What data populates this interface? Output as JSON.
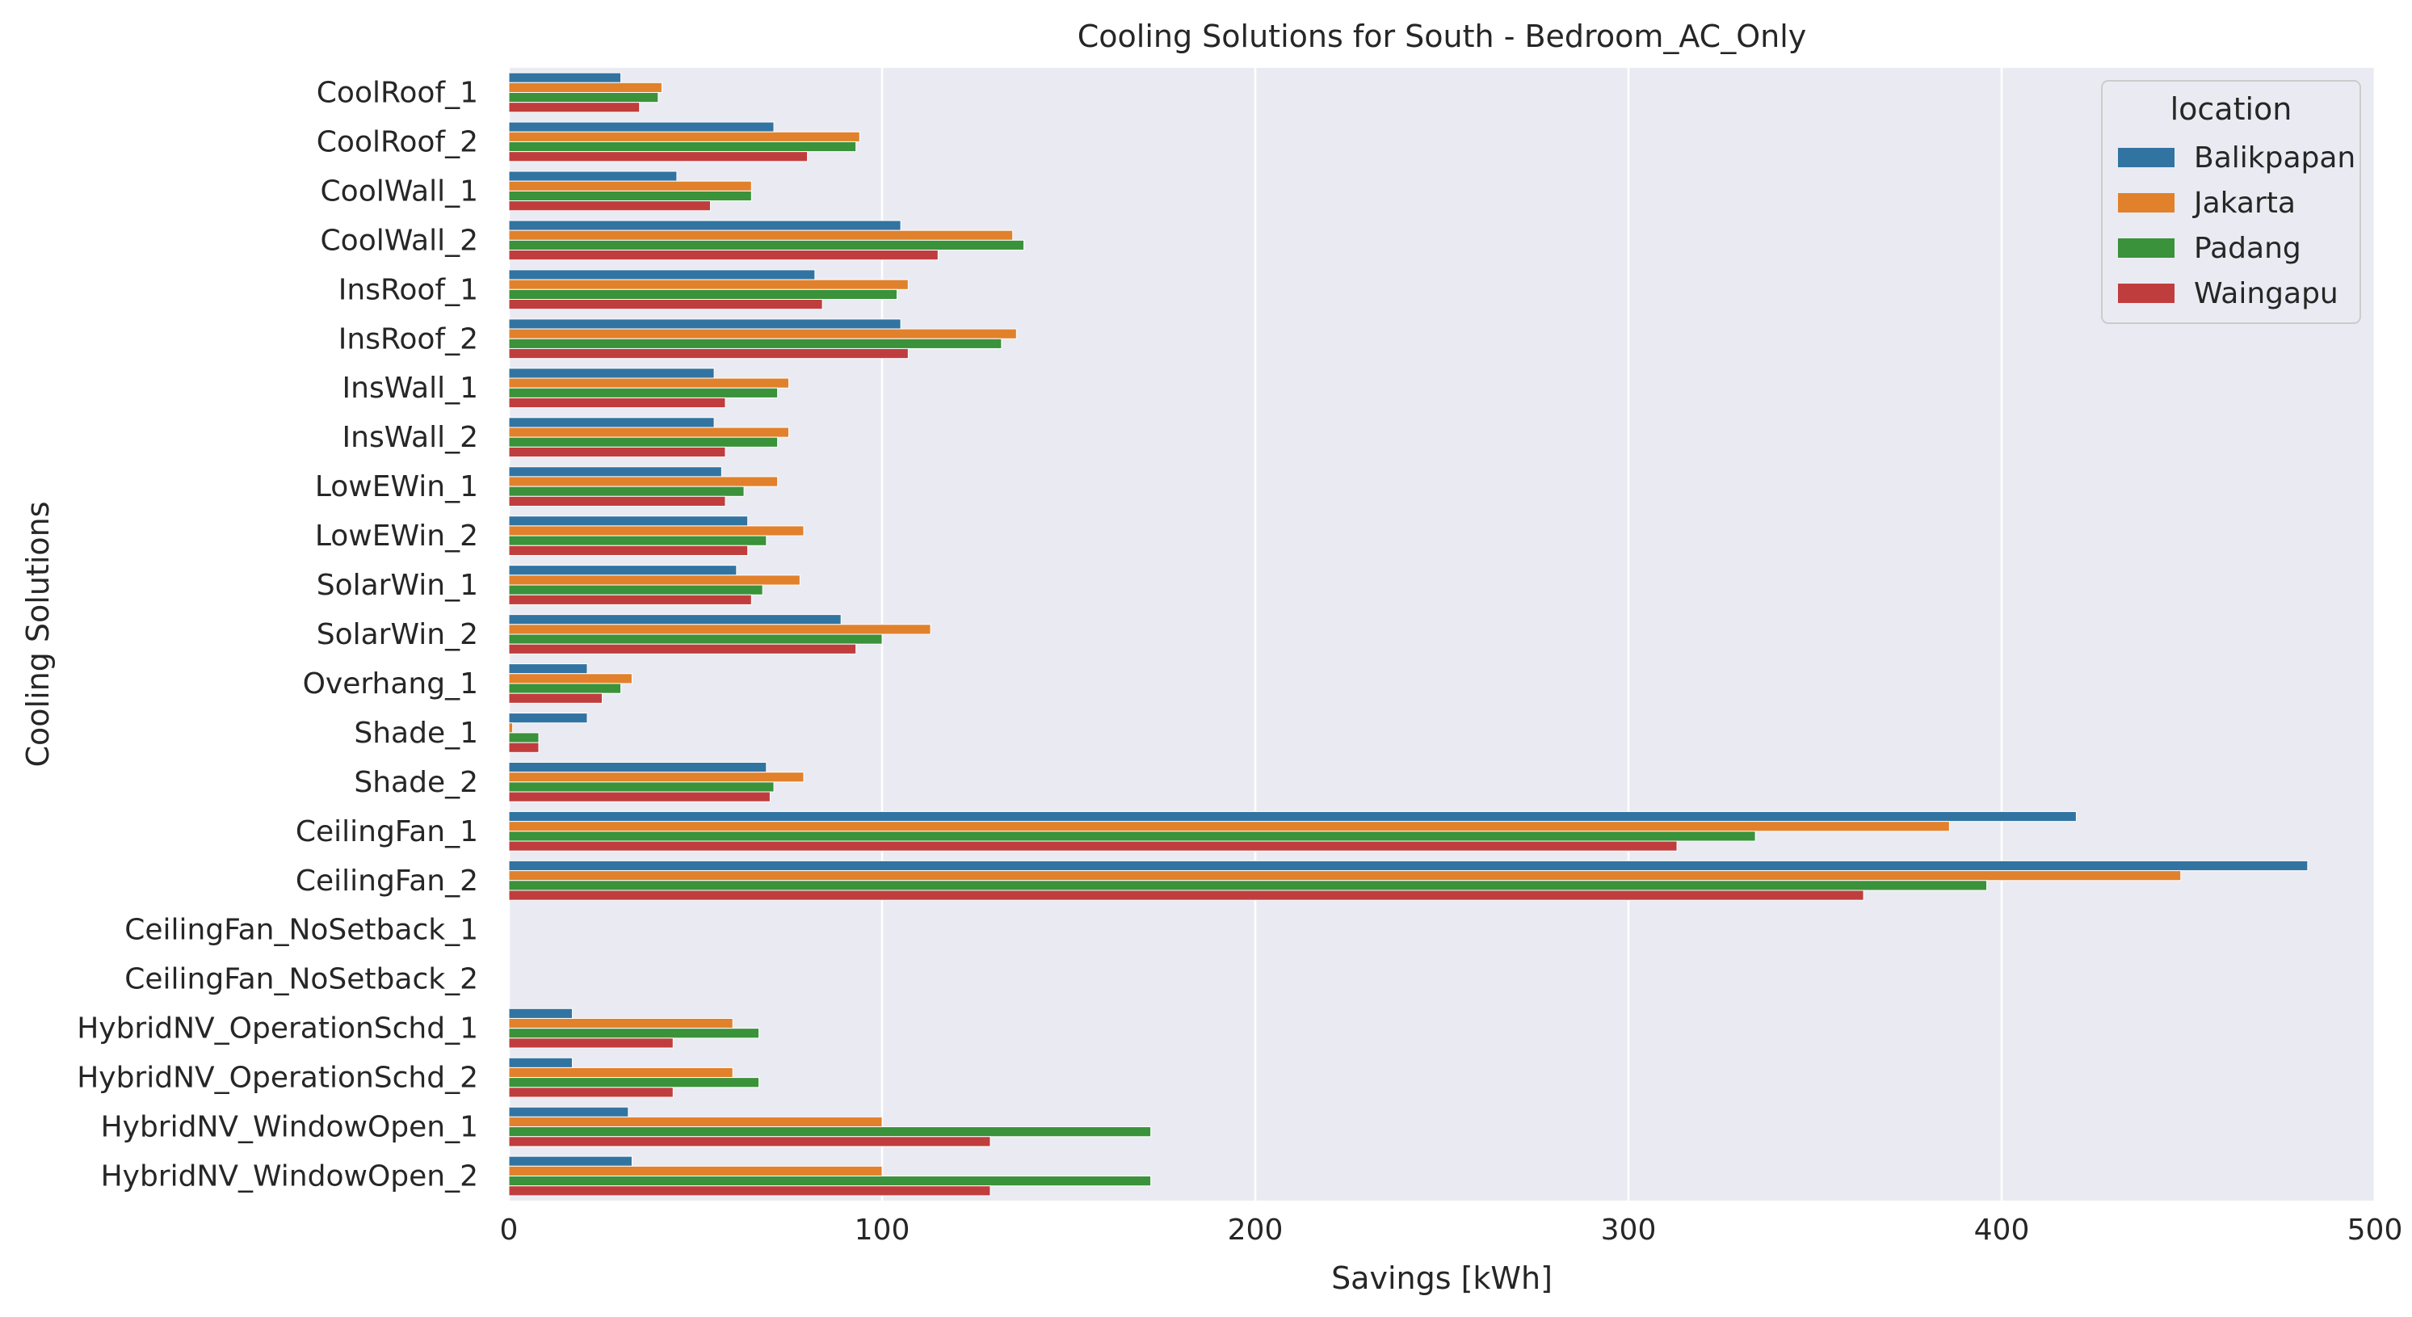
{
  "chart_data": {
    "type": "bar",
    "orientation": "horizontal",
    "title": "Cooling Solutions for South - Bedroom_AC_Only",
    "xlabel": "Savings [kWh]",
    "ylabel": "Cooling Solutions",
    "xlim": [
      0,
      500
    ],
    "xticks": [
      0,
      100,
      200,
      300,
      400,
      500
    ],
    "grid": true,
    "legend": {
      "title": "location",
      "placement": "top-right"
    },
    "categories": [
      "CoolRoof_1",
      "CoolRoof_2",
      "CoolWall_1",
      "CoolWall_2",
      "InsRoof_1",
      "InsRoof_2",
      "InsWall_1",
      "InsWall_2",
      "LowEWin_1",
      "LowEWin_2",
      "SolarWin_1",
      "SolarWin_2",
      "Overhang_1",
      "Shade_1",
      "Shade_2",
      "CeilingFan_1",
      "CeilingFan_2",
      "CeilingFan_NoSetback_1",
      "CeilingFan_NoSetback_2",
      "HybridNV_OperationSchd_1",
      "HybridNV_OperationSchd_2",
      "HybridNV_WindowOpen_1",
      "HybridNV_WindowOpen_2"
    ],
    "series": [
      {
        "name": "Balikpapan",
        "color": "#3274a1",
        "values": [
          30,
          71,
          45,
          105,
          82,
          105,
          55,
          55,
          57,
          64,
          61,
          89,
          21,
          21,
          69,
          420,
          482,
          0,
          0,
          17,
          17,
          32,
          33
        ]
      },
      {
        "name": "Jakarta",
        "color": "#e1812c",
        "values": [
          41,
          94,
          65,
          135,
          107,
          136,
          75,
          75,
          72,
          79,
          78,
          113,
          33,
          1,
          79,
          386,
          448,
          0,
          0,
          60,
          60,
          100,
          100
        ]
      },
      {
        "name": "Padang",
        "color": "#3a923a",
        "values": [
          40,
          93,
          65,
          138,
          104,
          132,
          72,
          72,
          63,
          69,
          68,
          100,
          30,
          8,
          71,
          334,
          396,
          0,
          0,
          67,
          67,
          172,
          172
        ]
      },
      {
        "name": "Waingapu",
        "color": "#c03d3e",
        "values": [
          35,
          80,
          54,
          115,
          84,
          107,
          58,
          58,
          58,
          64,
          65,
          93,
          25,
          8,
          70,
          313,
          363,
          0,
          0,
          44,
          44,
          129,
          129
        ]
      }
    ]
  }
}
